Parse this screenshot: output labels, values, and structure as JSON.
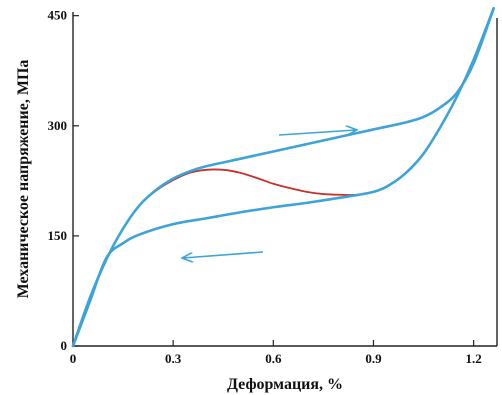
{
  "chart_data": {
    "type": "line",
    "xlabel": "Деформация, %",
    "ylabel": "Механическое напряжение, МПа",
    "xlim": [
      0,
      1.27
    ],
    "ylim": [
      0,
      455
    ],
    "xticks": [
      0,
      0.3,
      0.6,
      0.9,
      1.2
    ],
    "xtick_labels": [
      "0",
      "0.3",
      "0.6",
      "0.9",
      "1.2"
    ],
    "yticks": [
      0,
      150,
      300,
      450
    ],
    "ytick_labels": [
      "0",
      "150",
      "300",
      "450"
    ],
    "grid": false,
    "legend": "none",
    "colors": {
      "blue": "#3ea3d8",
      "red": "#c8302b",
      "arrow": "#3ea3d8",
      "axis": "#222222"
    },
    "series": [
      {
        "color": "#c8302b",
        "x": [
          0,
          0.05,
          0.1,
          0.15,
          0.2,
          0.25,
          0.3,
          0.35,
          0.4,
          0.45,
          0.5,
          0.55,
          0.6,
          0.65,
          0.7,
          0.75,
          0.8,
          0.85,
          0.9,
          0.95,
          1.0,
          1.05,
          1.1,
          1.15,
          1.2,
          1.26
        ],
        "y": [
          0,
          65,
          118,
          160,
          192,
          212,
          226,
          236,
          240,
          240,
          236,
          229,
          221,
          215,
          210,
          207,
          206,
          206,
          210,
          220,
          237,
          262,
          298,
          340,
          390,
          460
        ]
      },
      {
        "color": "#3ea3d8",
        "x": [
          0,
          0.05,
          0.1,
          0.15,
          0.2,
          0.25,
          0.3,
          0.35,
          0.4,
          0.5,
          0.6,
          0.7,
          0.8,
          0.9,
          1.0,
          1.05,
          1.1,
          1.15,
          1.2,
          1.26
        ],
        "y": [
          0,
          65,
          118,
          160,
          192,
          213,
          228,
          238,
          245,
          255,
          265,
          275,
          285,
          295,
          305,
          312,
          325,
          345,
          385,
          460
        ]
      },
      {
        "color": "#3ea3d8",
        "x": [
          1.26,
          1.2,
          1.15,
          1.1,
          1.05,
          1.0,
          0.95,
          0.9,
          0.8,
          0.7,
          0.6,
          0.5,
          0.4,
          0.3,
          0.2,
          0.15,
          0.1,
          0.05,
          0
        ],
        "y": [
          460,
          390,
          340,
          298,
          262,
          237,
          220,
          210,
          202,
          195,
          189,
          182,
          174,
          166,
          152,
          140,
          120,
          60,
          0
        ]
      }
    ]
  }
}
